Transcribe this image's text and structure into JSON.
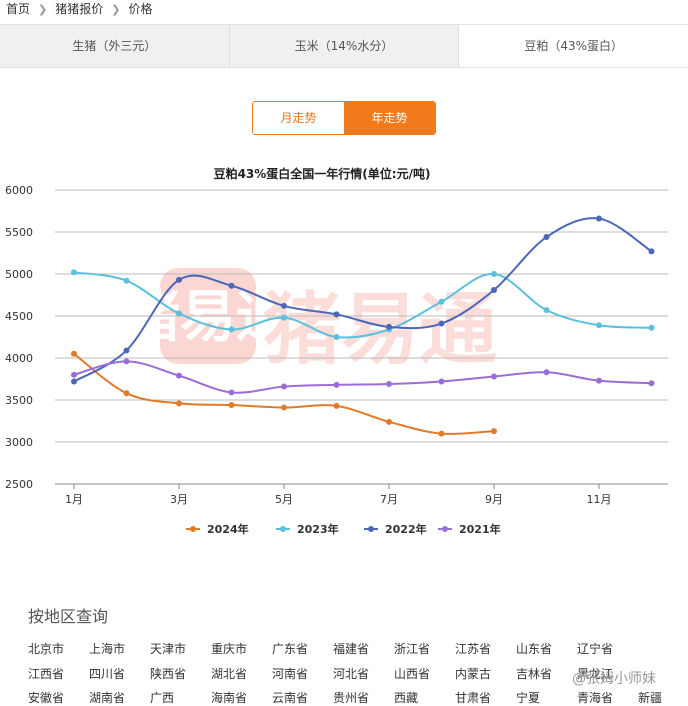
{
  "breadcrumb": [
    "首页",
    "猪猪报价",
    "价格"
  ],
  "tabs": [
    {
      "label": "生猪（外三元）",
      "active": false
    },
    {
      "label": "玉米（14%水分）",
      "active": false
    },
    {
      "label": "豆粕（43%蛋白）",
      "active": true
    }
  ],
  "toggle": {
    "month_label": "月走势",
    "year_label": "年走势",
    "selected": "year"
  },
  "watermark": "猪易通",
  "colors": {
    "accent": "#f27a1a",
    "2024": "#e07b2a",
    "2023": "#5bc0de",
    "2022": "#4a67b8",
    "2021": "#9b6dd6"
  },
  "chart_data": {
    "type": "line",
    "title": "豆粕43%蛋白全国一年行情(单位:元/吨)",
    "xlabel": "",
    "ylabel": "",
    "x": [
      1,
      2,
      3,
      4,
      5,
      6,
      7,
      8,
      9,
      10,
      11,
      12
    ],
    "x_ticks": [
      "1月",
      "3月",
      "5月",
      "7月",
      "9月",
      "11月"
    ],
    "y_ticks": [
      "2500",
      "3000",
      "3500",
      "4000",
      "4500",
      "5000",
      "5500",
      "6000"
    ],
    "ylim": [
      2500,
      6000
    ],
    "grid": true,
    "legend_position": "bottom",
    "series": [
      {
        "name": "2024年",
        "color": "#e07b2a",
        "values": [
          4050,
          3580,
          3460,
          3440,
          3410,
          3430,
          3240,
          3100,
          3130,
          null,
          null,
          null
        ]
      },
      {
        "name": "2023年",
        "color": "#5bc0de",
        "values": [
          5020,
          4920,
          4530,
          4340,
          4480,
          4250,
          4340,
          4670,
          5000,
          4570,
          4390,
          4360
        ]
      },
      {
        "name": "2022年",
        "color": "#4a67b8",
        "values": [
          3720,
          4090,
          4930,
          4860,
          4620,
          4520,
          4370,
          4410,
          4810,
          5440,
          5660,
          5270
        ]
      },
      {
        "name": "2021年",
        "color": "#9b6dd6",
        "values": [
          3800,
          3960,
          3790,
          3590,
          3660,
          3680,
          3690,
          3720,
          3780,
          3830,
          3730,
          3700
        ]
      }
    ]
  },
  "regions": {
    "title": "按地区查询",
    "rows": [
      [
        "北京市",
        "上海市",
        "天津市",
        "重庆市",
        "广东省",
        "福建省",
        "浙江省",
        "江苏省",
        "山东省",
        "辽宁省"
      ],
      [
        "江西省",
        "四川省",
        "陕西省",
        "湖北省",
        "河南省",
        "河北省",
        "山西省",
        "内蒙古",
        "吉林省",
        "黑龙江"
      ],
      [
        "安徽省",
        "湖南省",
        "广西",
        "海南省",
        "云南省",
        "贵州省",
        "西藏",
        "甘肃省",
        "宁夏",
        "青海省",
        "新疆"
      ]
    ]
  },
  "weibo": "@张姆小师妹"
}
